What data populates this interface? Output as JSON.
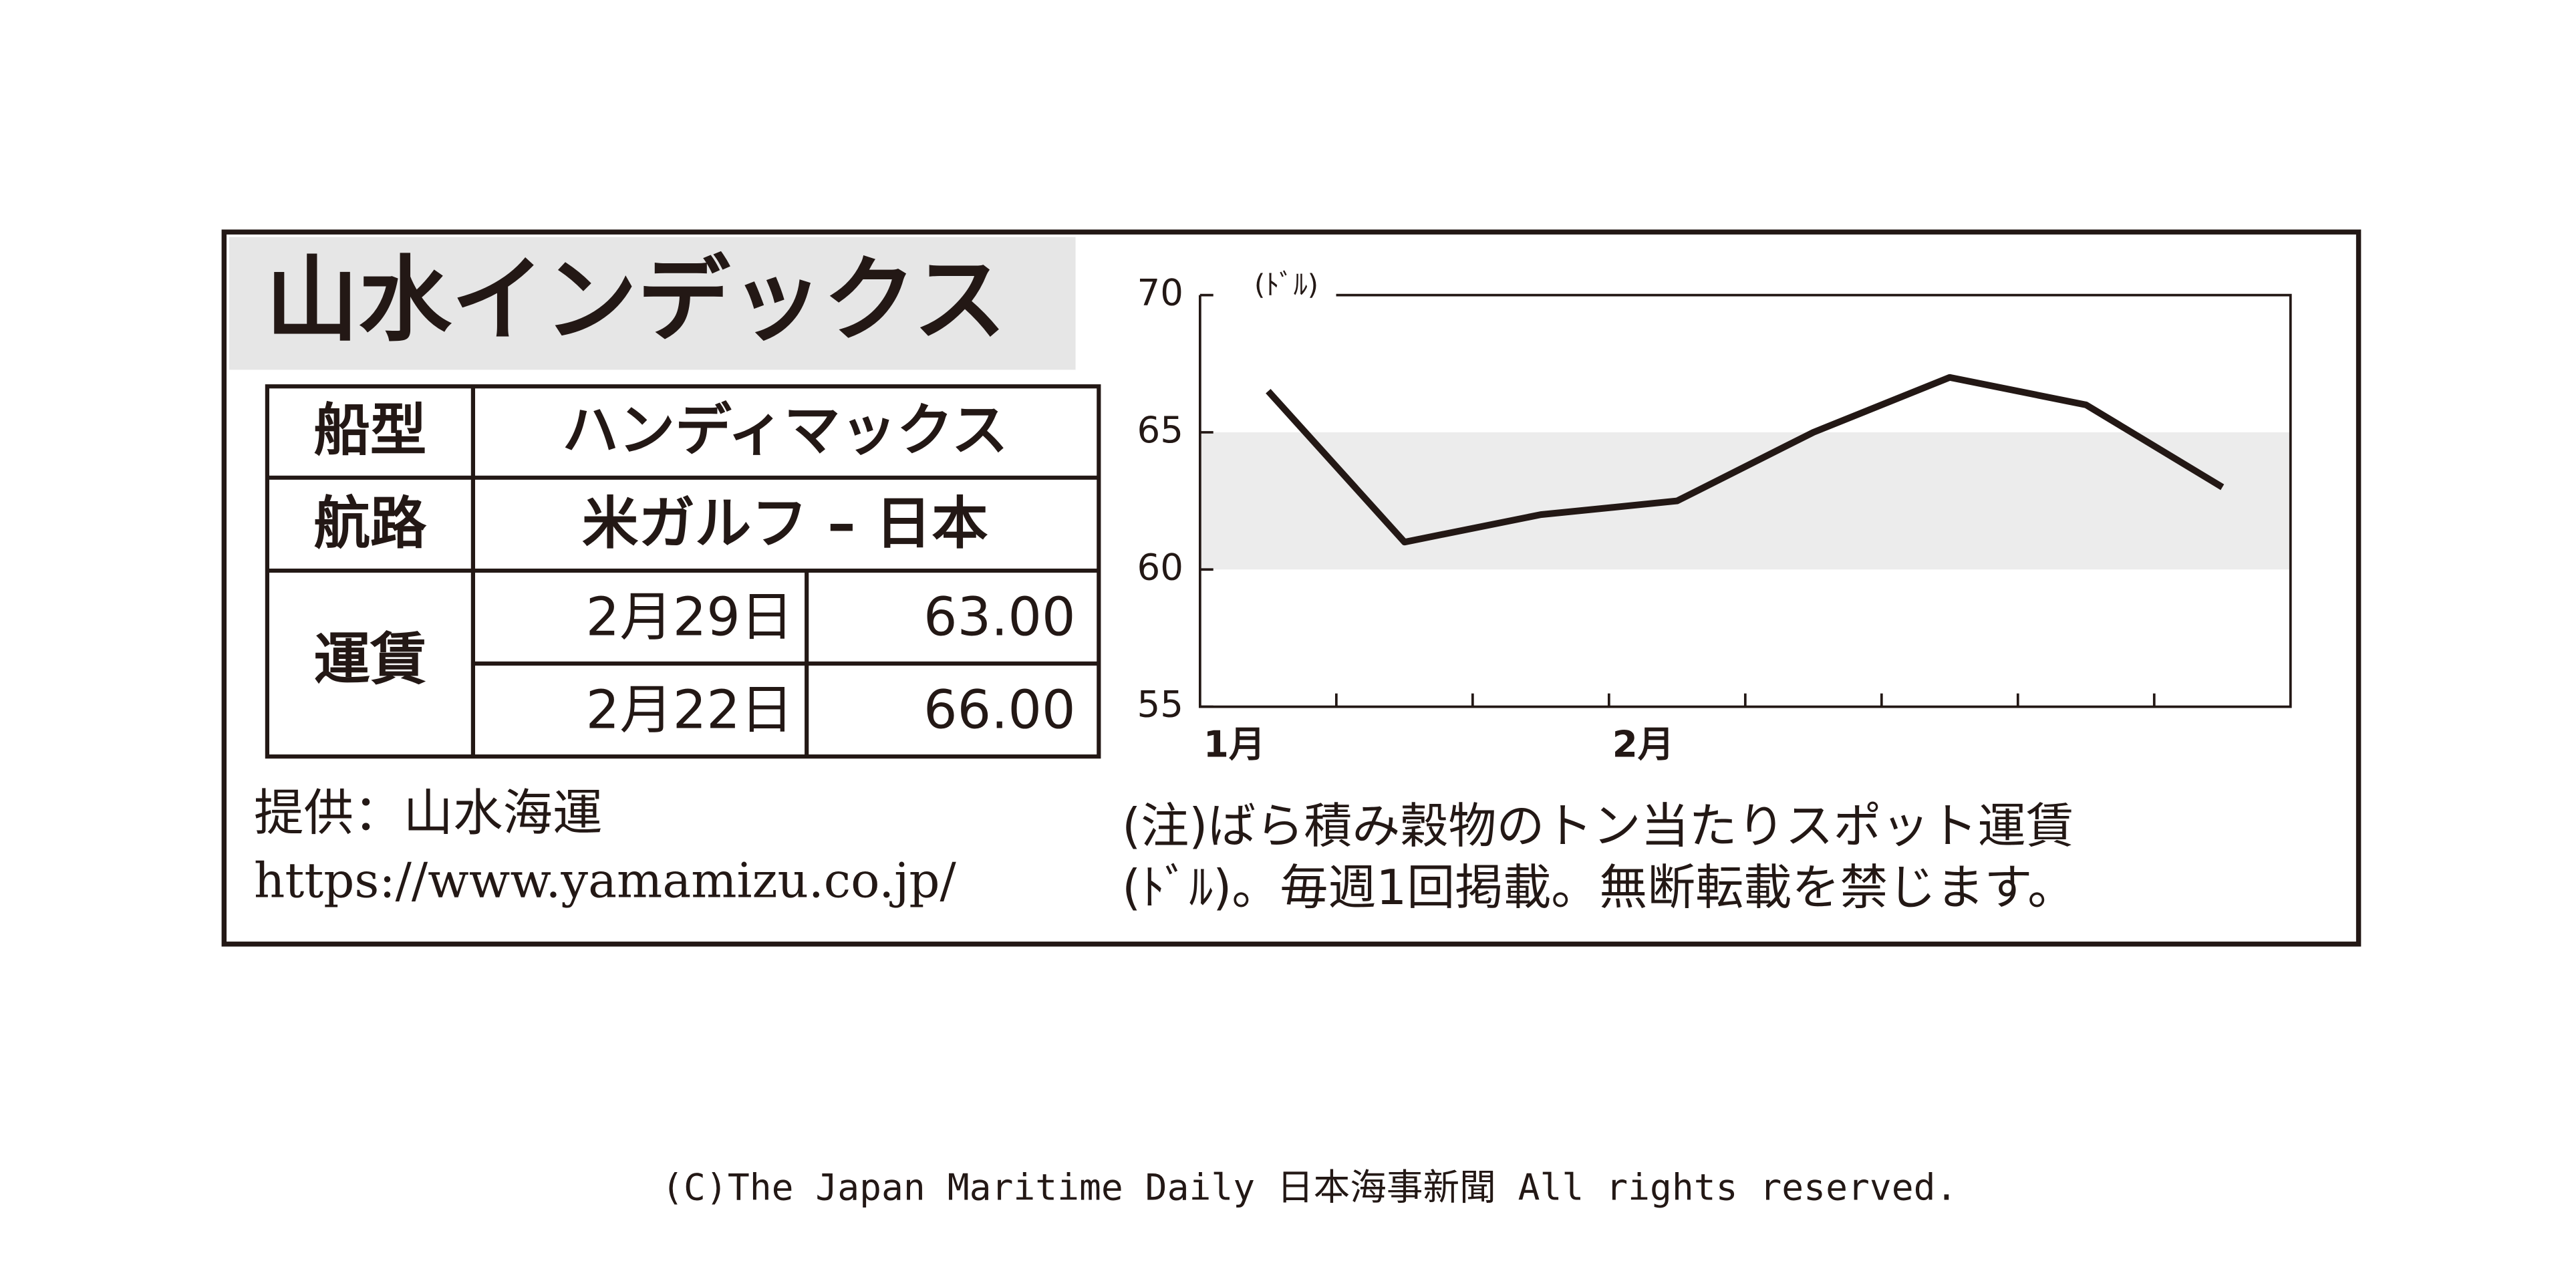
{
  "header": {
    "title": "山水インデックス"
  },
  "table": {
    "ship_type": {
      "label": "船型",
      "value": "ハンディマックス"
    },
    "route": {
      "label": "航路",
      "value": "米ガルフ – 日本"
    },
    "freight": {
      "label": "運賃",
      "rows": [
        [
          "2月29日",
          "63.00"
        ],
        [
          "2月22日",
          "66.00"
        ]
      ]
    }
  },
  "source": {
    "label": "提供：山水海運",
    "url": "https://www.yamamizu.co.jp/"
  },
  "note": [
    "(注)ばら積み穀物のトン当たりスポット運賃",
    "(ﾄﾞﾙ)。毎週1回掲載。無断転載を禁じます。"
  ],
  "chart_data": {
    "type": "line",
    "y_unit": "(ﾄﾞﾙ)",
    "categories": [
      "1月",
      null,
      null,
      "2月",
      null,
      null,
      null,
      null
    ],
    "values": [
      66.5,
      61,
      62,
      62.5,
      65,
      67,
      66,
      63
    ],
    "color": "#231815",
    "ylim": [
      55,
      70
    ],
    "yticks": [
      55,
      60,
      65,
      70
    ],
    "shaded_range": [
      60,
      65
    ],
    "shade_color": "#ececec"
  },
  "copyright": "(C)The Japan Maritime Daily 日本海事新聞 All rights reserved."
}
